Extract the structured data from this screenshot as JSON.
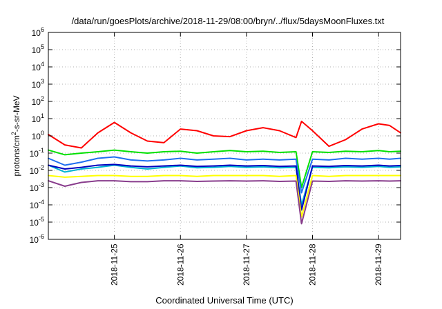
{
  "chart_data": {
    "type": "line",
    "title": "/data/run/goesPlots/archive/2018-11-29/08:00/bryn/../flux/5daysMoonFluxes.txt",
    "xlabel": "Coordinated Universal Time (UTC)",
    "ylabel_base": "protons/cm",
    "ylabel_exp": "2",
    "ylabel_tail": "-s-sr-MeV",
    "x_axis": {
      "type": "date",
      "range": [
        "2018-11-24T00:00",
        "2018-11-29T08:00"
      ],
      "ticks": [
        "2018-11-25",
        "2018-11-26",
        "2018-11-27",
        "2018-11-28",
        "2018-11-29"
      ]
    },
    "y_axis": {
      "scale": "log",
      "range": [
        1e-06,
        1000000.0
      ],
      "tick_base": "10",
      "tick_exponents": [
        "-6",
        "-5",
        "-4",
        "-3",
        "-2",
        "-1",
        "0",
        "1",
        "2",
        "3",
        "4",
        "5",
        "6"
      ]
    },
    "grid": true,
    "legend": "none",
    "x": [
      "2018-11-24T00:00",
      "2018-11-24T06:00",
      "2018-11-24T12:00",
      "2018-11-24T18:00",
      "2018-11-25T00:00",
      "2018-11-25T06:00",
      "2018-11-25T12:00",
      "2018-11-25T18:00",
      "2018-11-26T00:00",
      "2018-11-26T06:00",
      "2018-11-26T12:00",
      "2018-11-26T18:00",
      "2018-11-27T00:00",
      "2018-11-27T06:00",
      "2018-11-27T12:00",
      "2018-11-27T18:00",
      "2018-11-27T20:00",
      "2018-11-28T00:00",
      "2018-11-28T06:00",
      "2018-11-28T12:00",
      "2018-11-28T18:00",
      "2018-11-29T00:00",
      "2018-11-29T04:00",
      "2018-11-29T08:00"
    ],
    "series": [
      {
        "color": "#ff0000",
        "values": [
          1.2,
          0.3,
          0.2,
          1.5,
          6,
          1.5,
          0.5,
          0.4,
          2.5,
          2.0,
          1.0,
          0.9,
          2.0,
          3.0,
          2.0,
          0.8,
          7,
          2.0,
          0.25,
          0.6,
          2.5,
          5,
          4,
          1.5
        ]
      },
      {
        "color": "#00e000",
        "values": [
          0.15,
          0.08,
          0.1,
          0.12,
          0.15,
          0.12,
          0.1,
          0.12,
          0.13,
          0.1,
          0.12,
          0.14,
          0.12,
          0.13,
          0.11,
          0.12,
          0.001,
          0.12,
          0.11,
          0.13,
          0.12,
          0.14,
          0.12,
          0.13
        ]
      },
      {
        "color": "#1e6ef0",
        "values": [
          0.05,
          0.02,
          0.03,
          0.05,
          0.06,
          0.04,
          0.035,
          0.04,
          0.05,
          0.04,
          0.045,
          0.05,
          0.04,
          0.045,
          0.04,
          0.045,
          0.0005,
          0.045,
          0.04,
          0.05,
          0.045,
          0.05,
          0.045,
          0.05
        ]
      },
      {
        "color": "#00b4d2",
        "values": [
          0.02,
          0.008,
          0.012,
          0.015,
          0.02,
          0.015,
          0.012,
          0.015,
          0.018,
          0.014,
          0.015,
          0.017,
          0.015,
          0.016,
          0.014,
          0.015,
          0.0001,
          0.015,
          0.014,
          0.016,
          0.015,
          0.017,
          0.015,
          0.016
        ]
      },
      {
        "color": "#0000c0",
        "values": [
          0.02,
          0.012,
          0.015,
          0.02,
          0.022,
          0.018,
          0.016,
          0.018,
          0.02,
          0.017,
          0.018,
          0.02,
          0.018,
          0.019,
          0.017,
          0.018,
          5e-05,
          0.018,
          0.017,
          0.019,
          0.018,
          0.02,
          0.018,
          0.019
        ]
      },
      {
        "color": "#ffff00",
        "values": [
          0.005,
          0.004,
          0.0045,
          0.005,
          0.005,
          0.0045,
          0.0045,
          0.005,
          0.005,
          0.0045,
          0.005,
          0.005,
          0.005,
          0.005,
          0.0045,
          0.005,
          2e-05,
          0.005,
          0.0045,
          0.005,
          0.005,
          0.005,
          0.005,
          0.005
        ]
      },
      {
        "color": "#883c8c",
        "values": [
          0.0025,
          0.0012,
          0.002,
          0.0025,
          0.0025,
          0.0022,
          0.0022,
          0.0025,
          0.0025,
          0.0023,
          0.0024,
          0.0025,
          0.0024,
          0.0025,
          0.0023,
          0.0024,
          8e-06,
          0.0024,
          0.0023,
          0.0025,
          0.0024,
          0.0025,
          0.0024,
          0.0025
        ]
      }
    ]
  }
}
